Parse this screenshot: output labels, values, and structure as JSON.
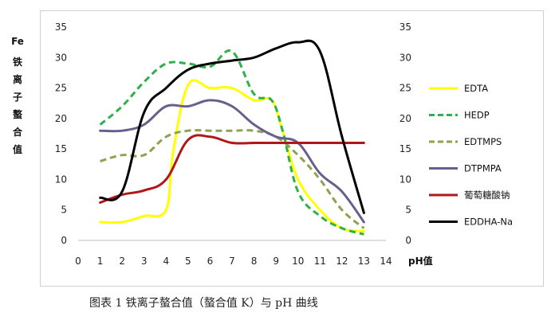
{
  "caption": "图表 1 铁离子螯合值（螯合值 K）与 pH 曲线",
  "chart_data": {
    "type": "line",
    "ylabel_left": "Fe铁离子螯合值",
    "ylabel_left_lines": [
      "Fe",
      "铁",
      "离",
      "子",
      "螯",
      "合",
      "值"
    ],
    "xlabel": "pH值",
    "xlim": [
      0,
      14
    ],
    "ylim": [
      0,
      35
    ],
    "x_ticks": [
      0,
      1,
      2,
      3,
      4,
      5,
      6,
      7,
      8,
      9,
      10,
      11,
      12,
      13,
      14
    ],
    "y_ticks": [
      0,
      5,
      10,
      15,
      20,
      25,
      30,
      35
    ],
    "grid": false,
    "legend_position": "right",
    "series": [
      {
        "name": "EDTA",
        "color": "#ffff00",
        "dash": "solid",
        "x": [
          1,
          2,
          3,
          4,
          4.3,
          5,
          6,
          7,
          8,
          8.8,
          9.3,
          10,
          11,
          12,
          13
        ],
        "values": [
          3,
          3,
          4,
          5,
          14,
          25.5,
          25,
          25,
          23,
          23,
          18,
          10,
          5,
          2,
          1.5
        ]
      },
      {
        "name": "HEDP",
        "color": "#2eb04a",
        "dash": "dashed",
        "x": [
          1,
          2,
          3,
          4,
          5,
          6,
          7,
          8,
          8.8,
          9.3,
          10,
          11,
          12,
          13
        ],
        "values": [
          19,
          22,
          26,
          29,
          29,
          28.5,
          31,
          24,
          23,
          18,
          8,
          4,
          2,
          1
        ]
      },
      {
        "name": "EDTMPS",
        "color": "#8fa050",
        "dash": "dashed",
        "x": [
          1,
          2,
          3,
          4,
          5,
          6,
          7,
          8,
          9,
          10,
          11,
          12,
          13
        ],
        "values": [
          13,
          14,
          14,
          17,
          18,
          18,
          18,
          18,
          17,
          14,
          10,
          5,
          2
        ]
      },
      {
        "name": "DTPMPA",
        "color": "#6a5f8c",
        "dash": "solid",
        "x": [
          1,
          2,
          3,
          4,
          5,
          6,
          7,
          8,
          9,
          10,
          11,
          12,
          13
        ],
        "values": [
          18,
          18,
          19,
          22,
          22,
          23,
          22,
          19,
          17,
          16,
          11,
          8,
          3
        ]
      },
      {
        "name": "葡萄糖酸钠",
        "color": "#b01818",
        "dash": "solid",
        "x": [
          1,
          2,
          3,
          4,
          5,
          6,
          7,
          8,
          9,
          10,
          11,
          12,
          13
        ],
        "values": [
          6.2,
          7.5,
          8.2,
          10,
          16.5,
          17,
          16,
          16,
          16,
          16,
          16,
          16,
          16
        ]
      },
      {
        "name": "EDDHA-Na",
        "color": "#000000",
        "dash": "solid",
        "x": [
          1,
          2,
          3,
          4,
          5,
          6,
          7,
          8,
          9,
          10,
          11,
          12,
          13
        ],
        "values": [
          7,
          8,
          21,
          25,
          28,
          29,
          29.5,
          30,
          31.5,
          32.5,
          31,
          17,
          4.5
        ]
      }
    ]
  }
}
